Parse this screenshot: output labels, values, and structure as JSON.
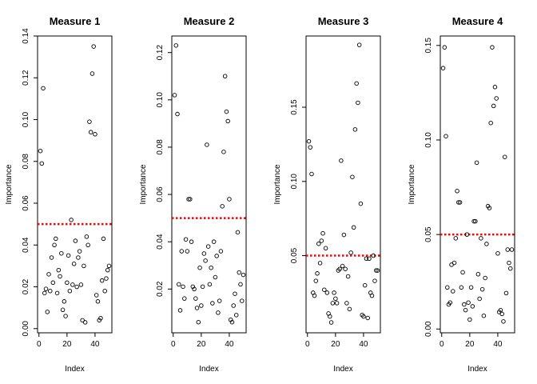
{
  "chart_data": [
    {
      "type": "scatter",
      "title": "Measure 1",
      "xlabel": "Index",
      "ylabel": "Importance",
      "xlim": [
        -1,
        52
      ],
      "ylim": [
        -0.002,
        0.14
      ],
      "xticks": [
        0,
        20,
        40
      ],
      "yticks": [
        0.0,
        0.02,
        0.04,
        0.06,
        0.08,
        0.1,
        0.12,
        0.14
      ],
      "ytick_labels": [
        "0.00",
        "0.02",
        "0.04",
        "0.06",
        "0.08",
        "0.10",
        "0.12",
        "0.14"
      ],
      "threshold": 0.05,
      "threshold_color": "#ff0000",
      "x": [
        1,
        2,
        3,
        4,
        5,
        6,
        7,
        8,
        9,
        10,
        11,
        12,
        13,
        14,
        15,
        16,
        17,
        18,
        19,
        20,
        21,
        22,
        23,
        24,
        25,
        26,
        27,
        28,
        29,
        30,
        31,
        32,
        33,
        34,
        35,
        36,
        37,
        38,
        39,
        40,
        41,
        42,
        43,
        44,
        45,
        46,
        47,
        48,
        49,
        50
      ],
      "y": [
        0.085,
        0.079,
        0.115,
        0.017,
        0.019,
        0.008,
        0.026,
        0.018,
        0.034,
        0.022,
        0.04,
        0.043,
        0.017,
        0.028,
        0.025,
        0.036,
        0.009,
        0.013,
        0.006,
        0.022,
        0.035,
        0.018,
        0.052,
        0.021,
        0.031,
        0.042,
        0.02,
        0.034,
        0.037,
        0.021,
        0.004,
        0.03,
        0.003,
        0.044,
        0.04,
        0.099,
        0.094,
        0.122,
        0.135,
        0.093,
        0.016,
        0.013,
        0.004,
        0.005,
        0.023,
        0.043,
        0.018,
        0.024,
        0.028,
        0.03
      ]
    },
    {
      "type": "scatter",
      "title": "Measure 2",
      "xlabel": "Index",
      "ylabel": "Importance",
      "xlim": [
        -1,
        52
      ],
      "ylim": [
        0.0015,
        0.127
      ],
      "xticks": [
        0,
        20,
        40
      ],
      "yticks": [
        0.02,
        0.04,
        0.06,
        0.08,
        0.1,
        0.12
      ],
      "ytick_labels": [
        "0.02",
        "0.04",
        "0.06",
        "0.08",
        "0.10",
        "0.12"
      ],
      "threshold": 0.05,
      "threshold_color": "#ff0000",
      "x": [
        1,
        2,
        3,
        4,
        5,
        6,
        7,
        8,
        9,
        10,
        11,
        12,
        13,
        14,
        15,
        16,
        17,
        18,
        19,
        20,
        21,
        22,
        23,
        24,
        25,
        26,
        27,
        28,
        29,
        30,
        31,
        32,
        33,
        34,
        35,
        36,
        37,
        38,
        39,
        40,
        41,
        42,
        43,
        44,
        45,
        46,
        47,
        48,
        49,
        50
      ],
      "y": [
        0.102,
        0.123,
        0.094,
        0.022,
        0.011,
        0.036,
        0.021,
        0.016,
        0.041,
        0.036,
        0.058,
        0.058,
        0.04,
        0.021,
        0.02,
        0.016,
        0.012,
        0.006,
        0.029,
        0.013,
        0.021,
        0.035,
        0.032,
        0.081,
        0.038,
        0.022,
        0.029,
        0.014,
        0.04,
        0.025,
        0.034,
        0.01,
        0.015,
        0.036,
        0.055,
        0.078,
        0.11,
        0.095,
        0.091,
        0.058,
        0.007,
        0.006,
        0.013,
        0.018,
        0.009,
        0.044,
        0.027,
        0.022,
        0.015,
        0.026
      ]
    },
    {
      "type": "scatter",
      "title": "Measure 3",
      "xlabel": "Index",
      "ylabel": "Importance",
      "xlim": [
        -1,
        52
      ],
      "ylim": [
        -0.002,
        0.198
      ],
      "xticks": [
        0,
        20,
        40
      ],
      "yticks": [
        0.05,
        0.1,
        0.15
      ],
      "ytick_labels": [
        "0.05",
        "0.10",
        "0.15"
      ],
      "threshold": 0.05,
      "threshold_color": "#ff0000",
      "x": [
        1,
        2,
        3,
        4,
        5,
        6,
        7,
        8,
        9,
        10,
        11,
        12,
        13,
        14,
        15,
        16,
        17,
        18,
        19,
        20,
        21,
        22,
        23,
        24,
        25,
        26,
        27,
        28,
        29,
        30,
        31,
        32,
        33,
        34,
        35,
        36,
        37,
        38,
        39,
        40,
        41,
        42,
        43,
        44,
        45,
        46,
        47,
        48,
        49,
        50
      ],
      "y": [
        0.127,
        0.123,
        0.105,
        0.025,
        0.023,
        0.033,
        0.038,
        0.058,
        0.045,
        0.06,
        0.065,
        0.027,
        0.055,
        0.025,
        0.011,
        0.009,
        0.005,
        0.018,
        0.025,
        0.021,
        0.018,
        0.04,
        0.041,
        0.114,
        0.043,
        0.064,
        0.041,
        0.018,
        0.036,
        0.014,
        0.052,
        0.103,
        0.069,
        0.135,
        0.166,
        0.153,
        0.192,
        0.085,
        0.01,
        0.009,
        0.03,
        0.048,
        0.008,
        0.048,
        0.025,
        0.023,
        0.05,
        0.033,
        0.04,
        0.04
      ]
    },
    {
      "type": "scatter",
      "title": "Measure 4",
      "xlabel": "Index",
      "ylabel": "Importance",
      "xlim": [
        -1,
        52
      ],
      "ylim": [
        -0.002,
        0.155
      ],
      "xticks": [
        0,
        20,
        40
      ],
      "yticks": [
        0.0,
        0.05,
        0.1,
        0.15
      ],
      "ytick_labels": [
        "0.00",
        "0.05",
        "0.10",
        "0.15"
      ],
      "threshold": 0.05,
      "threshold_color": "#ff0000",
      "x": [
        1,
        2,
        3,
        4,
        5,
        6,
        7,
        8,
        9,
        10,
        11,
        12,
        13,
        14,
        15,
        16,
        17,
        18,
        19,
        20,
        21,
        22,
        23,
        24,
        25,
        26,
        27,
        28,
        29,
        30,
        31,
        32,
        33,
        34,
        35,
        36,
        37,
        38,
        39,
        40,
        41,
        42,
        43,
        44,
        45,
        46,
        47,
        48,
        49,
        50
      ],
      "y": [
        0.138,
        0.149,
        0.102,
        0.022,
        0.013,
        0.014,
        0.034,
        0.02,
        0.035,
        0.048,
        0.073,
        0.067,
        0.067,
        0.022,
        0.03,
        0.013,
        0.01,
        0.05,
        0.014,
        0.005,
        0.022,
        0.012,
        0.057,
        0.057,
        0.088,
        0.029,
        0.016,
        0.048,
        0.021,
        0.007,
        0.027,
        0.045,
        0.065,
        0.064,
        0.109,
        0.149,
        0.118,
        0.128,
        0.122,
        0.04,
        0.009,
        0.01,
        0.008,
        0.004,
        0.091,
        0.019,
        0.042,
        0.035,
        0.032,
        0.042
      ]
    }
  ]
}
